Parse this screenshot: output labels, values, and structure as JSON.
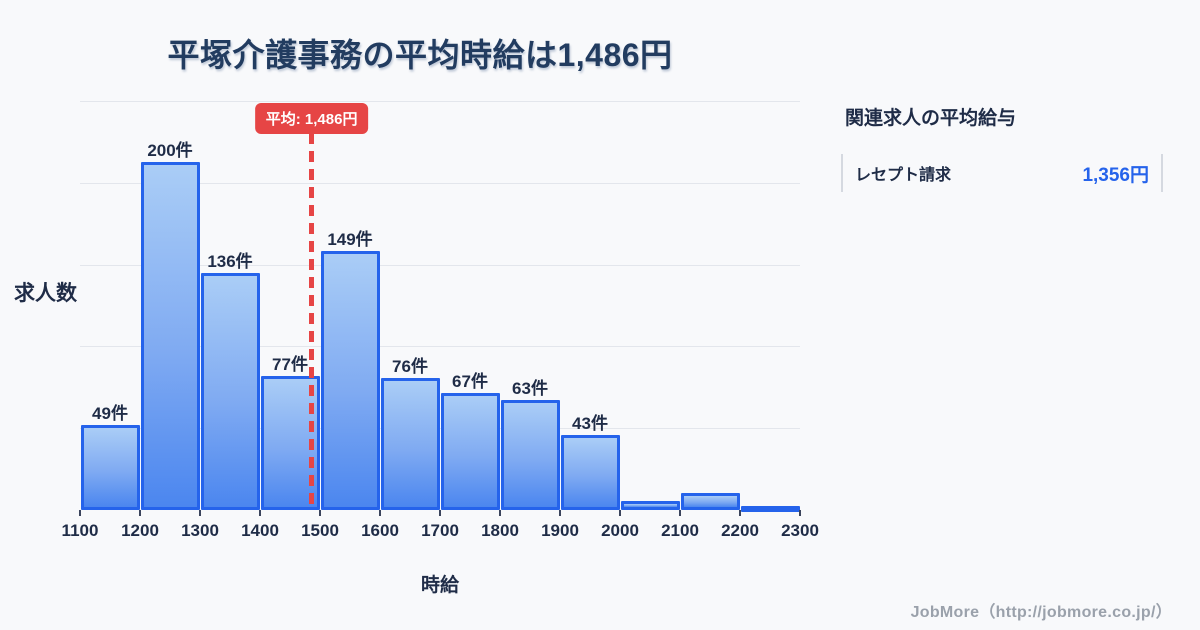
{
  "header": {
    "title": "平塚介護事務の平均時給は1,486円"
  },
  "chart_data": {
    "type": "bar",
    "subtype": "histogram",
    "title": "平塚介護事務の平均時給は1,486円",
    "xlabel": "時給",
    "ylabel": "求人数",
    "bin_edges": [
      1100,
      1200,
      1300,
      1400,
      1500,
      1600,
      1700,
      1800,
      1900,
      2000,
      2100,
      2200,
      2300
    ],
    "x_tick_labels": [
      "1100",
      "1200",
      "1300",
      "1400",
      "1500",
      "1600",
      "1700",
      "1800",
      "1900",
      "2000",
      "2100",
      "2200",
      "2300"
    ],
    "values": [
      49,
      200,
      136,
      77,
      149,
      76,
      67,
      63,
      43,
      5,
      10,
      1
    ],
    "bar_labels": [
      "49件",
      "200件",
      "136件",
      "77件",
      "149件",
      "76件",
      "67件",
      "63件",
      "43件",
      "",
      "",
      ""
    ],
    "ylim": [
      0,
      235
    ],
    "gridline_values": [
      47,
      94,
      141,
      188,
      235
    ],
    "grid": true,
    "legend": "none",
    "mean": {
      "value": 1486,
      "label": "平均: 1,486円"
    },
    "colors": {
      "bar_fill_top": "#aacdf6",
      "bar_fill_bottom": "#4b86ef",
      "bar_border": "#2563eb",
      "mean_line": "#e64545",
      "grid": "#e3e6ec",
      "text": "#1f2c47",
      "title": "#223c60",
      "background": "#f8f9fb"
    }
  },
  "side_panel": {
    "heading": "関連求人の平均給与",
    "rows": [
      {
        "label": "レセプト請求",
        "value": "1,356円"
      }
    ]
  },
  "footer": {
    "credit": "JobMore（http://jobmore.co.jp/）"
  }
}
